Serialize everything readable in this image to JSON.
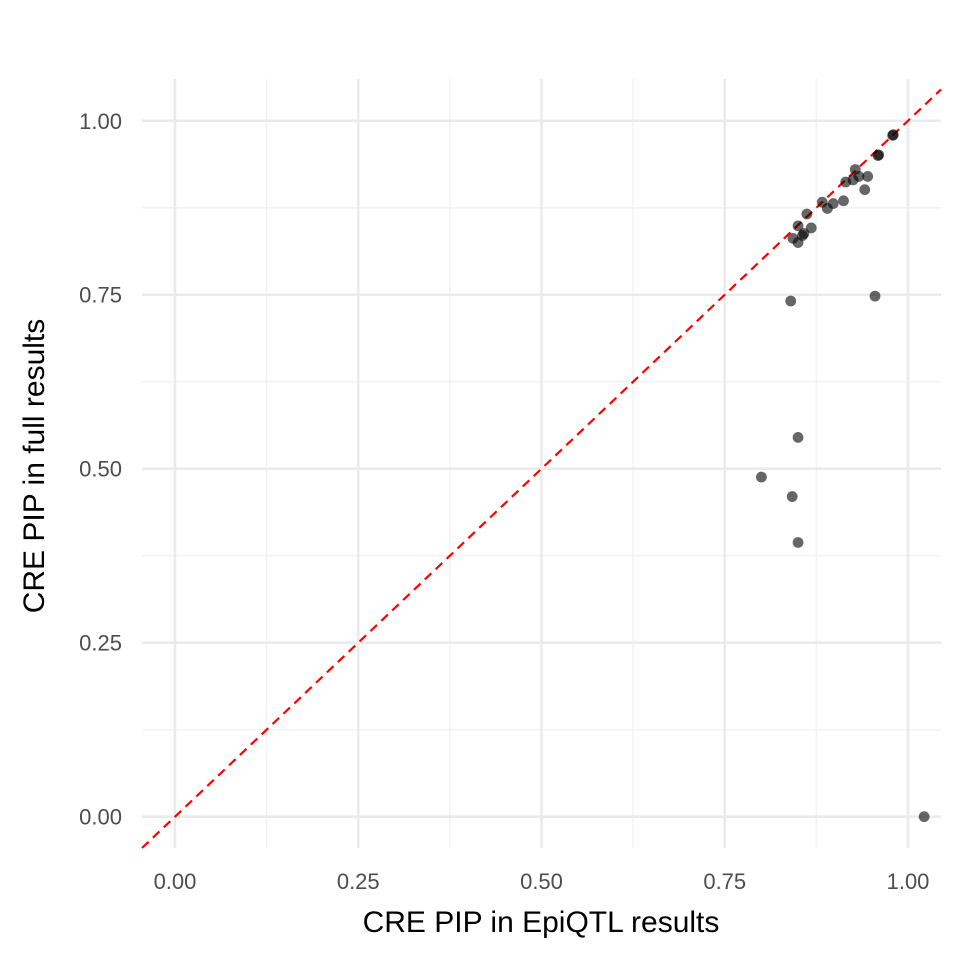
{
  "chart_data": {
    "type": "scatter",
    "title": "",
    "xlabel": "CRE PIP in EpiQTL results",
    "ylabel": "CRE PIP in full results",
    "xlim": [
      -0.045,
      1.045
    ],
    "ylim": [
      -0.045,
      1.06
    ],
    "x_ticks": [
      0,
      0.25,
      0.5,
      0.75,
      1
    ],
    "x_tick_labels": [
      "0.00",
      "0.25",
      "0.50",
      "0.75",
      "1.00"
    ],
    "y_ticks": [
      0,
      0.25,
      0.5,
      0.75,
      1
    ],
    "y_tick_labels": [
      "0.00",
      "0.25",
      "0.50",
      "0.75",
      "1.00"
    ],
    "minor_ticks": [
      0.125,
      0.375,
      0.625,
      0.875
    ],
    "grid": true,
    "reference_line": {
      "slope": 1,
      "intercept": 0,
      "color": "#ff0000",
      "style": "dashed"
    },
    "point_color": "#000000",
    "point_opacity": 0.6,
    "points": [
      {
        "x": 0.98,
        "y": 0.98
      },
      {
        "x": 0.979,
        "y": 0.979
      },
      {
        "x": 0.96,
        "y": 0.951
      },
      {
        "x": 0.959,
        "y": 0.95
      },
      {
        "x": 0.928,
        "y": 0.93
      },
      {
        "x": 0.933,
        "y": 0.92
      },
      {
        "x": 0.945,
        "y": 0.92
      },
      {
        "x": 0.925,
        "y": 0.915
      },
      {
        "x": 0.915,
        "y": 0.912
      },
      {
        "x": 0.941,
        "y": 0.901
      },
      {
        "x": 0.883,
        "y": 0.883
      },
      {
        "x": 0.898,
        "y": 0.881
      },
      {
        "x": 0.912,
        "y": 0.885
      },
      {
        "x": 0.89,
        "y": 0.874
      },
      {
        "x": 0.862,
        "y": 0.866
      },
      {
        "x": 0.85,
        "y": 0.849
      },
      {
        "x": 0.868,
        "y": 0.846
      },
      {
        "x": 0.858,
        "y": 0.838
      },
      {
        "x": 0.856,
        "y": 0.835
      },
      {
        "x": 0.843,
        "y": 0.831
      },
      {
        "x": 0.85,
        "y": 0.825
      },
      {
        "x": 0.84,
        "y": 0.741
      },
      {
        "x": 0.955,
        "y": 0.748
      },
      {
        "x": 0.85,
        "y": 0.545
      },
      {
        "x": 0.8,
        "y": 0.488
      },
      {
        "x": 0.842,
        "y": 0.46
      },
      {
        "x": 0.85,
        "y": 0.394
      },
      {
        "x": 1.022,
        "y": 0.0
      }
    ]
  }
}
